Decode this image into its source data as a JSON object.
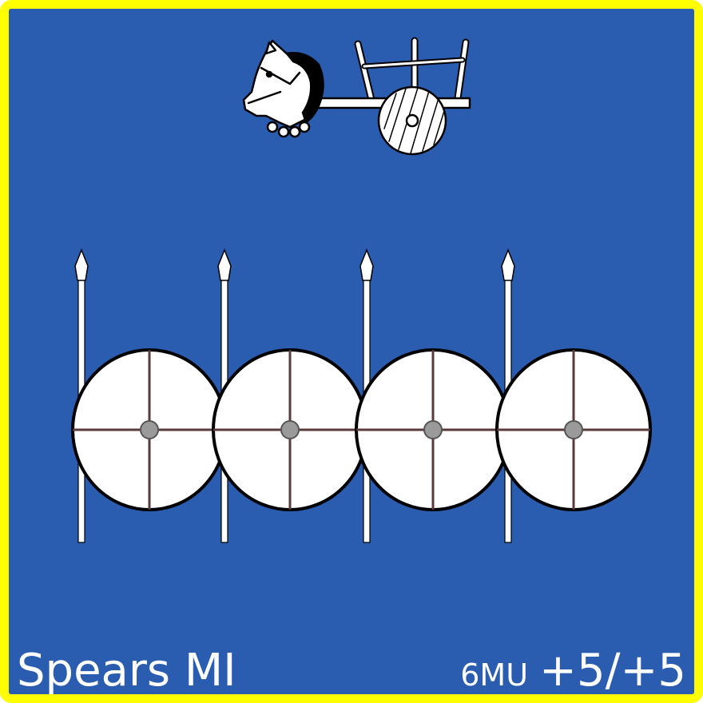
{
  "card": {
    "unit_name": "Spears MI",
    "movement": "6MU",
    "combat_factor": "+5/+5",
    "colors": {
      "border": "#ffff00",
      "background": "#2a5db0",
      "text": "#ffffff"
    }
  },
  "icons": {
    "top_emblem": "horse-chariot-icon",
    "troops": [
      "spear-shield-icon",
      "spear-shield-icon",
      "spear-shield-icon",
      "spear-shield-icon"
    ]
  }
}
